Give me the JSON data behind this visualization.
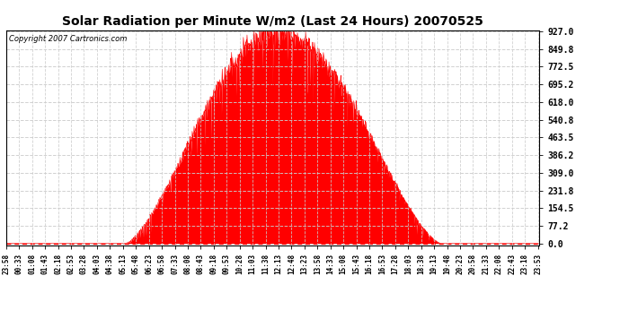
{
  "title": "Solar Radiation per Minute W/m2 (Last 24 Hours) 20070525",
  "copyright_text": "Copyright 2007 Cartronics.com",
  "fill_color": "#FF0000",
  "line_color": "#FF0000",
  "background_color": "#FFFFFF",
  "plot_bg_color": "#FFFFFF",
  "grid_color": "#CCCCCC",
  "dashed_line_color": "#FF0000",
  "yticks": [
    0.0,
    77.2,
    154.5,
    231.8,
    309.0,
    386.2,
    463.5,
    540.8,
    618.0,
    695.2,
    772.5,
    849.8,
    927.0
  ],
  "ymax": 927.0,
  "ymin": 0.0,
  "peak_value": 927.0,
  "peak_hour": 12.2,
  "start_hour": 5.3,
  "end_hour": 19.55,
  "num_points": 1440,
  "tick_interval_min": 35,
  "base_hour": 23,
  "base_min": 58
}
